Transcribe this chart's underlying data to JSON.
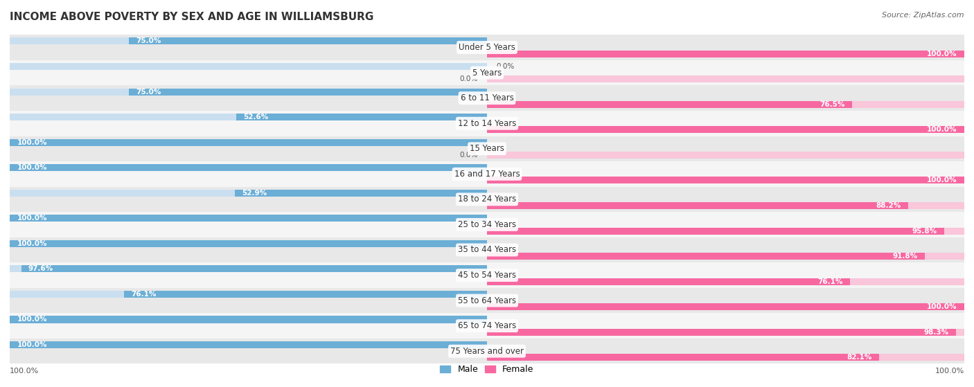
{
  "title": "INCOME ABOVE POVERTY BY SEX AND AGE IN WILLIAMSBURG",
  "source": "Source: ZipAtlas.com",
  "categories": [
    "Under 5 Years",
    "5 Years",
    "6 to 11 Years",
    "12 to 14 Years",
    "15 Years",
    "16 and 17 Years",
    "18 to 24 Years",
    "25 to 34 Years",
    "35 to 44 Years",
    "45 to 54 Years",
    "55 to 64 Years",
    "65 to 74 Years",
    "75 Years and over"
  ],
  "male": [
    75.0,
    0.0,
    75.0,
    52.6,
    100.0,
    100.0,
    52.9,
    100.0,
    100.0,
    97.6,
    76.1,
    100.0,
    100.0
  ],
  "female": [
    100.0,
    0.0,
    76.5,
    100.0,
    0.0,
    100.0,
    88.2,
    95.8,
    91.8,
    76.1,
    100.0,
    98.3,
    82.1
  ],
  "male_color": "#6baed6",
  "female_color": "#f768a1",
  "male_color_light": "#c9dff0",
  "female_color_light": "#f9c6da",
  "row_color_even": "#e8e8e8",
  "row_color_odd": "#f5f5f5",
  "figsize": [
    14.06,
    5.59
  ],
  "dpi": 100
}
